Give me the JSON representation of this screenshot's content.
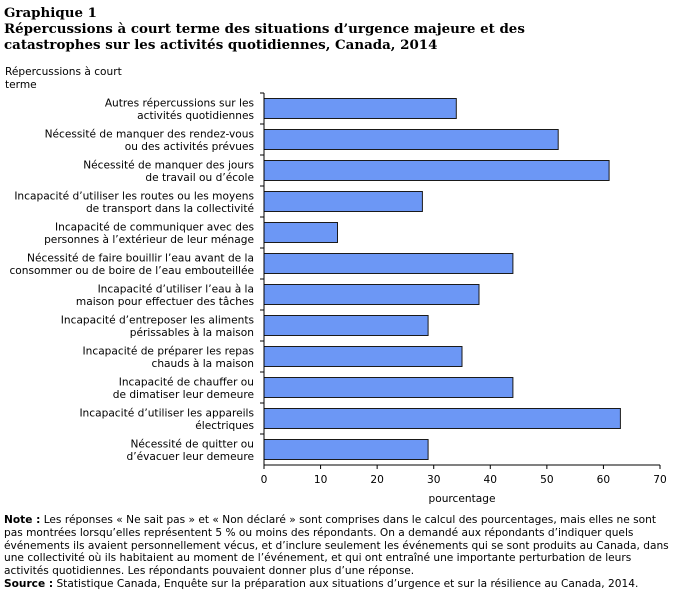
{
  "header": {
    "graph_label": "Graphique 1",
    "title": "Répercussions à court terme des situations d’urgence majeure et des catastrophes sur les activités quotidiennes, Canada, 2014"
  },
  "colors": {
    "bar_fill": "#6C97F5",
    "bar_stroke": "#1a1a1a",
    "axis": "#000000"
  },
  "chart_data": {
    "type": "bar",
    "orientation": "horizontal",
    "ylabel": "Répercussions à court terme",
    "xlabel": "pourcentage",
    "xlim": [
      0,
      70
    ],
    "xticks": [
      0,
      10,
      20,
      30,
      40,
      50,
      60,
      70
    ],
    "grid": false,
    "categories": [
      [
        "Autres répercussions sur les",
        "activités quotidiennes"
      ],
      [
        "Nécessité de manquer des rendez-vous",
        "ou des activités prévues"
      ],
      [
        "Nécessité de manquer des jours",
        "de travail ou d’école"
      ],
      [
        "Incapacité d’utiliser les routes ou les moyens",
        "de transport dans la collectivité"
      ],
      [
        "Incapacité de communiquer avec des",
        "personnes à l’extérieur de leur ménage"
      ],
      [
        "Nécessité de faire bouillir l’eau avant de la",
        "consommer ou de boire de l’eau embouteillée"
      ],
      [
        "Incapacité d’utiliser l’eau à la",
        "maison pour effectuer des tâches"
      ],
      [
        "Incapacité d’entreposer les aliments",
        "périssables à la maison"
      ],
      [
        "Incapacité de préparer les repas",
        "chauds à la maison"
      ],
      [
        "Incapacité de chauffer ou",
        "de dimatiser leur demeure"
      ],
      [
        "Incapacité d’utiliser les appareils",
        "électriques"
      ],
      [
        "Nécessité de quitter ou",
        "d’évacuer leur demeure"
      ]
    ],
    "values": [
      34,
      52,
      61,
      28,
      13,
      44,
      38,
      29,
      35,
      44,
      63,
      29
    ]
  },
  "notes": {
    "note_label": "Note :",
    "note_text": "Les réponses « Ne sait pas » et « Non déclaré » sont comprises dans le calcul des pourcentages, mais elles ne sont pas montrées lorsqu’elles représentent 5 % ou moins des répondants. On a demandé aux répondants d’indiquer quels événements ils avaient personnellement vécus, et d’inclure seulement les événements qui se sont produits au Canada, dans une collectivité où ils habitaient au moment de l’événement, et qui ont entraîné une importante perturbation de leurs activités quotidiennes. Les répondants pouvaient donner plus d’une réponse.",
    "source_label": "Source :",
    "source_text": "Statistique Canada, Enquête sur la préparation aux situations d’urgence et sur la résilience au Canada, 2014."
  }
}
